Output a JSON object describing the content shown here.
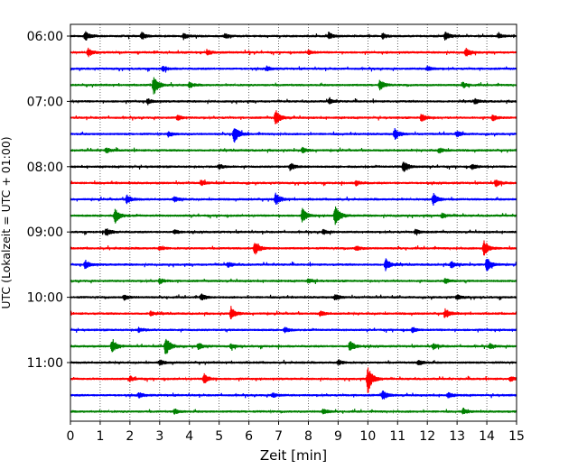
{
  "chart_data": {
    "type": "line",
    "title": "",
    "xlabel": "Zeit  [min]",
    "ylabel": "UTC (Lokalzeit = UTC + 01:00)",
    "xlim": [
      0,
      15
    ],
    "xticks": [
      "0",
      "1",
      "2",
      "3",
      "4",
      "5",
      "6",
      "7",
      "8",
      "9",
      "10",
      "11",
      "12",
      "13",
      "14",
      "15"
    ],
    "yticks": [
      "06:00",
      "07:00",
      "08:00",
      "09:00",
      "10:00",
      "11:00"
    ],
    "grid": "vertical dotted",
    "trace_interval_minutes": 15,
    "trace_start": "06:00",
    "trace_count": 24,
    "colors": [
      "#000000",
      "#ff0000",
      "#0000ff",
      "#008000"
    ],
    "events": [
      [
        [
          0.5,
          0.55
        ],
        [
          2.4,
          0.45
        ],
        [
          12.6,
          0.5
        ],
        [
          3.8,
          0.35
        ],
        [
          5.2,
          0.3
        ],
        [
          8.7,
          0.35
        ],
        [
          10.5,
          0.3
        ],
        [
          14.4,
          0.3
        ]
      ],
      [
        [
          0.6,
          0.5
        ],
        [
          13.3,
          0.5
        ],
        [
          4.6,
          0.3
        ],
        [
          8.0,
          0.3
        ]
      ],
      [
        [
          3.1,
          0.3
        ],
        [
          12.0,
          0.3
        ],
        [
          6.6,
          0.25
        ]
      ],
      [
        [
          2.8,
          1.3
        ],
        [
          10.4,
          0.6
        ],
        [
          4.0,
          0.3
        ],
        [
          13.2,
          0.3
        ]
      ],
      [
        [
          2.6,
          0.3
        ],
        [
          8.7,
          0.3
        ],
        [
          13.6,
          0.3
        ]
      ],
      [
        [
          6.9,
          0.95
        ],
        [
          11.8,
          0.5
        ],
        [
          14.2,
          0.35
        ],
        [
          3.6,
          0.3
        ]
      ],
      [
        [
          5.5,
          1.1
        ],
        [
          10.9,
          0.65
        ],
        [
          3.3,
          0.3
        ],
        [
          13.0,
          0.3
        ]
      ],
      [
        [
          1.2,
          0.3
        ],
        [
          7.8,
          0.3
        ],
        [
          12.4,
          0.3
        ]
      ],
      [
        [
          7.4,
          0.4
        ],
        [
          11.2,
          0.75
        ],
        [
          5.0,
          0.3
        ],
        [
          13.5,
          0.3
        ]
      ],
      [
        [
          14.3,
          0.45
        ],
        [
          4.4,
          0.3
        ],
        [
          9.6,
          0.3
        ]
      ],
      [
        [
          1.9,
          0.55
        ],
        [
          3.5,
          0.35
        ],
        [
          6.9,
          0.75
        ],
        [
          12.2,
          0.75
        ]
      ],
      [
        [
          1.5,
          0.9
        ],
        [
          7.8,
          0.85
        ],
        [
          8.9,
          1.3
        ],
        [
          12.5,
          0.3
        ]
      ],
      [
        [
          1.2,
          0.5
        ],
        [
          3.5,
          0.3
        ],
        [
          8.5,
          0.3
        ],
        [
          11.6,
          0.3
        ]
      ],
      [
        [
          6.2,
          0.85
        ],
        [
          9.6,
          0.3
        ],
        [
          13.9,
          1.0
        ],
        [
          3.0,
          0.25
        ]
      ],
      [
        [
          0.5,
          0.5
        ],
        [
          10.6,
          0.8
        ],
        [
          14.0,
          0.9
        ],
        [
          5.3,
          0.3
        ],
        [
          12.8,
          0.4
        ]
      ],
      [
        [
          3.0,
          0.3
        ],
        [
          8.0,
          0.3
        ],
        [
          12.6,
          0.3
        ]
      ],
      [
        [
          4.4,
          0.4
        ],
        [
          8.9,
          0.35
        ],
        [
          13.0,
          0.3
        ],
        [
          1.8,
          0.3
        ]
      ],
      [
        [
          5.4,
          0.7
        ],
        [
          12.6,
          0.55
        ],
        [
          8.4,
          0.3
        ],
        [
          2.7,
          0.3
        ]
      ],
      [
        [
          2.3,
          0.3
        ],
        [
          7.2,
          0.3
        ],
        [
          11.5,
          0.3
        ]
      ],
      [
        [
          1.4,
          0.85
        ],
        [
          3.2,
          1.2
        ],
        [
          4.3,
          0.4
        ],
        [
          5.4,
          0.3
        ],
        [
          9.4,
          0.75
        ],
        [
          12.2,
          0.35
        ],
        [
          14.1,
          0.3
        ]
      ],
      [
        [
          3.0,
          0.3
        ],
        [
          9.0,
          0.3
        ],
        [
          11.7,
          0.35
        ]
      ],
      [
        [
          4.5,
          0.6
        ],
        [
          10.0,
          1.7
        ],
        [
          2.0,
          0.3
        ],
        [
          14.8,
          0.3
        ]
      ],
      [
        [
          10.5,
          0.55
        ],
        [
          2.3,
          0.3
        ],
        [
          6.8,
          0.3
        ],
        [
          12.7,
          0.3
        ]
      ],
      [
        [
          3.5,
          0.3
        ],
        [
          8.5,
          0.3
        ],
        [
          13.2,
          0.3
        ]
      ]
    ]
  }
}
